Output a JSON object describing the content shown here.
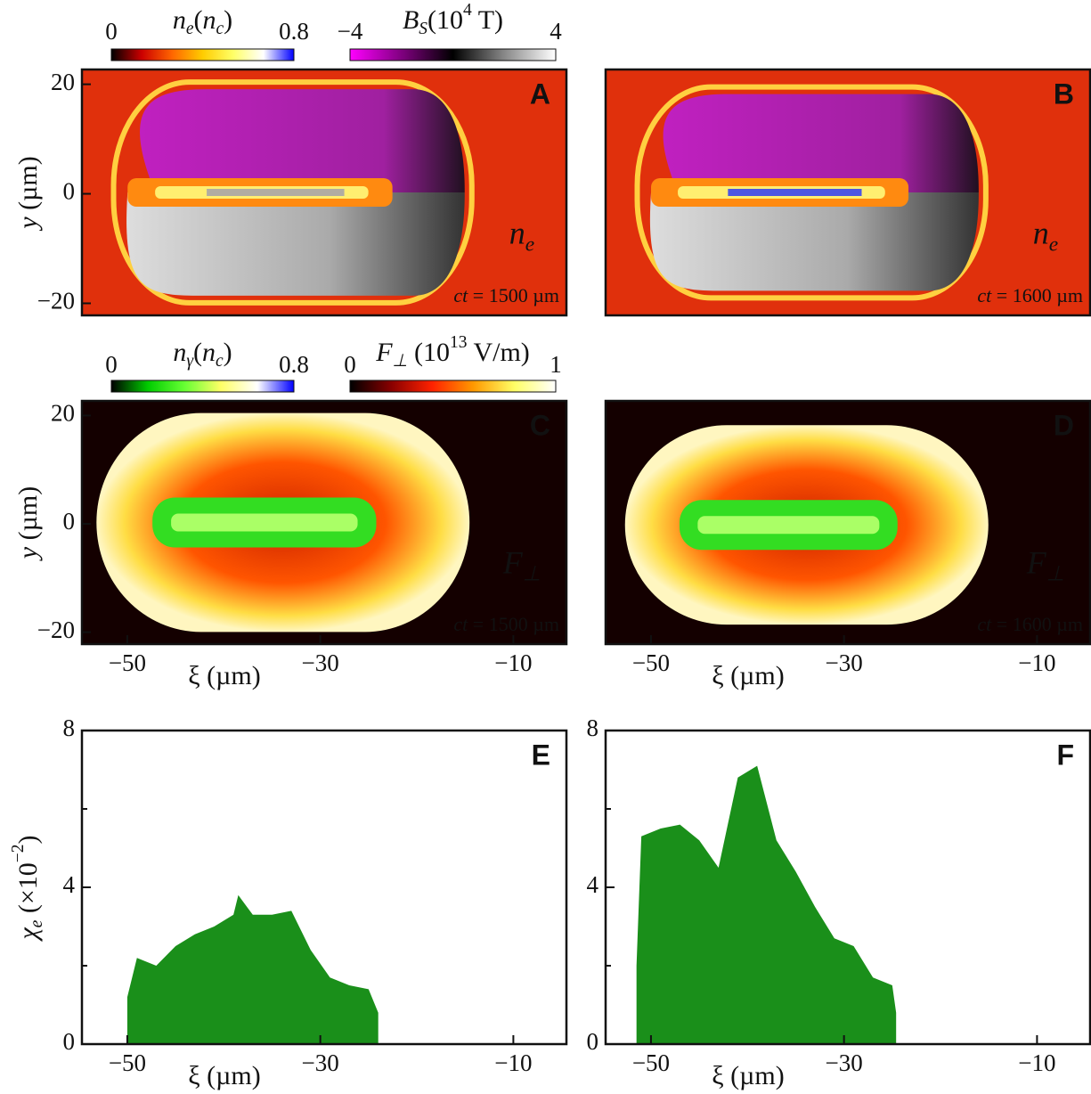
{
  "chart_data": [
    {
      "type": "heatmap",
      "letter": "A",
      "background": "#e0300c",
      "ylim": [
        -22.2,
        22.7
      ],
      "yticks": [
        {
          "value": 20,
          "label": "20"
        },
        0,
        {
          "value": -20,
          "label": "−20"
        }
      ],
      "ylabel": [
        {
          "text": "y",
          "style": "italic"
        },
        {
          "text": " (µm)"
        }
      ],
      "quantity": [
        {
          "text": "n",
          "style": "italic"
        },
        {
          "text": "e",
          "style": "sub"
        }
      ],
      "time": [
        {
          "text": "ct",
          "style": "italic"
        },
        {
          "text": " = 1500 µm"
        }
      ],
      "colorbars": [
        {
          "label": [
            {
              "text": "n",
              "style": "italic"
            },
            {
              "text": "e",
              "style": "sub"
            },
            {
              "text": "("
            },
            {
              "text": "n",
              "style": "italic"
            },
            {
              "text": "c",
              "style": "sub"
            },
            {
              "text": ")"
            }
          ],
          "clim": [
            0,
            0.8
          ],
          "ticks": [
            0,
            0.8
          ],
          "colors": [
            "#000000",
            "#cc0000",
            "#ff6600",
            "#ffcc00",
            "#ffff66",
            "#ffffff",
            "#0000ff"
          ]
        },
        {
          "label": [
            {
              "text": "B",
              "style": "italic"
            },
            {
              "text": "S",
              "style": "sub"
            },
            {
              "text": "(10"
            },
            {
              "text": "4",
              "style": "sup"
            },
            {
              "text": " T)"
            }
          ],
          "clim": [
            -4,
            4
          ],
          "ticks": [
            {
              "value": -4,
              "label": "−4"
            },
            4
          ],
          "colors": [
            "#ff00ff",
            "#800080",
            "#000000",
            "#888888",
            "#ffffff"
          ]
        }
      ]
    },
    {
      "type": "heatmap",
      "letter": "B",
      "background": "#e0300c",
      "quantity": [
        {
          "text": "n",
          "style": "italic"
        },
        {
          "text": "e",
          "style": "sub"
        }
      ],
      "time": [
        {
          "text": "ct",
          "style": "italic"
        },
        {
          "text": " = 1600 µm"
        }
      ]
    },
    {
      "type": "heatmap",
      "letter": "C",
      "background": "#140000",
      "xlim": [
        -54.7,
        -4.5
      ],
      "xticks": [
        {
          "value": -50,
          "label": "−50"
        },
        {
          "value": -30,
          "label": "−30"
        },
        {
          "value": -10,
          "label": "−10"
        }
      ],
      "xlabel": [
        {
          "text": "ξ (µm)"
        }
      ],
      "ylim": [
        -22.2,
        22.7
      ],
      "yticks": [
        {
          "value": 20,
          "label": "20"
        },
        0,
        {
          "value": -20,
          "label": "−20"
        }
      ],
      "ylabel": [
        {
          "text": "y",
          "style": "italic"
        },
        {
          "text": " (µm)"
        }
      ],
      "quantity": [
        {
          "text": "F",
          "style": "italic"
        },
        {
          "text": "⊥",
          "style": "sub"
        }
      ],
      "time": [
        {
          "text": "ct",
          "style": "italic"
        },
        {
          "text": " = 1500 µm"
        }
      ],
      "colorbars": [
        {
          "label": [
            {
              "text": "n",
              "style": "italic"
            },
            {
              "text": "γ",
              "style": "sub"
            },
            {
              "text": "("
            },
            {
              "text": "n",
              "style": "italic"
            },
            {
              "text": "c",
              "style": "sub"
            },
            {
              "text": ")"
            }
          ],
          "clim": [
            0,
            0.8
          ],
          "ticks": [
            0,
            0.8
          ],
          "colors": [
            "#000000",
            "#00cc00",
            "#66ff33",
            "#ffff66",
            "#ffffff",
            "#0000ff"
          ]
        },
        {
          "label": [
            {
              "text": "F",
              "style": "italic"
            },
            {
              "text": "⊥",
              "style": "sub"
            },
            {
              "text": " (10"
            },
            {
              "text": "13",
              "style": "sup"
            },
            {
              "text": " V/m)"
            }
          ],
          "clim": [
            0,
            1
          ],
          "ticks": [
            0,
            1
          ],
          "colors": [
            "#000000",
            "#880000",
            "#ff2200",
            "#ff9900",
            "#ffff66",
            "#ffffff"
          ]
        }
      ]
    },
    {
      "type": "heatmap",
      "letter": "D",
      "background": "#140000",
      "xlim": [
        -54.7,
        -4.5
      ],
      "xticks": [
        {
          "value": -50,
          "label": "−50"
        },
        {
          "value": -30,
          "label": "−30"
        },
        {
          "value": -10,
          "label": "−10"
        }
      ],
      "xlabel": [
        {
          "text": "ξ (µm)"
        }
      ],
      "quantity": [
        {
          "text": "F",
          "style": "italic"
        },
        {
          "text": "⊥",
          "style": "sub"
        }
      ],
      "time": [
        {
          "text": "ct",
          "style": "italic"
        },
        {
          "text": " = 1600 µm"
        }
      ]
    },
    {
      "type": "area",
      "letter": "E",
      "color": "#1a8f1a",
      "xlim": [
        -54.7,
        -4.5
      ],
      "xticks": [
        {
          "value": -50,
          "label": "−50"
        },
        {
          "value": -30,
          "label": "−30"
        },
        {
          "value": -10,
          "label": "−10"
        }
      ],
      "xlabel": [
        {
          "text": "ξ (µm)"
        }
      ],
      "ylim": [
        0,
        8
      ],
      "yticks": [
        0,
        4,
        8
      ],
      "minor_yticks": [
        2,
        6
      ],
      "ylabel": [
        {
          "text": "χ",
          "style": "italic"
        },
        {
          "text": "e",
          "style": "sub"
        },
        {
          "text": " (×10"
        },
        {
          "text": "−2",
          "style": "sup"
        },
        {
          "text": ")"
        }
      ],
      "x": [
        -50,
        -49,
        -47,
        -45,
        -43,
        -41,
        -39,
        -38.5,
        -37,
        -35,
        -33,
        -31,
        -29,
        -27,
        -25,
        -24
      ],
      "values": [
        1.2,
        2.2,
        2.0,
        2.5,
        2.8,
        3.0,
        3.3,
        3.8,
        3.3,
        3.3,
        3.4,
        2.4,
        1.7,
        1.5,
        1.4,
        0.8
      ]
    },
    {
      "type": "area",
      "letter": "F",
      "color": "#1a8f1a",
      "xlim": [
        -54.7,
        -4.5
      ],
      "xticks": [
        {
          "value": -50,
          "label": "−50"
        },
        {
          "value": -30,
          "label": "−30"
        },
        {
          "value": -10,
          "label": "−10"
        }
      ],
      "xlabel": [
        {
          "text": "ξ (µm)"
        }
      ],
      "ylim": [
        0,
        8
      ],
      "yticks": [
        0,
        4,
        8
      ],
      "minor_yticks": [
        2,
        6
      ],
      "x": [
        -51.5,
        -51,
        -49,
        -47,
        -45,
        -43,
        -41,
        -39,
        -37,
        -35,
        -33,
        -31,
        -29,
        -27,
        -25,
        -24.6
      ],
      "values": [
        2.0,
        5.3,
        5.5,
        5.6,
        5.2,
        4.5,
        6.8,
        7.1,
        5.2,
        4.4,
        3.5,
        2.7,
        2.5,
        1.7,
        1.5,
        0.8
      ]
    }
  ]
}
